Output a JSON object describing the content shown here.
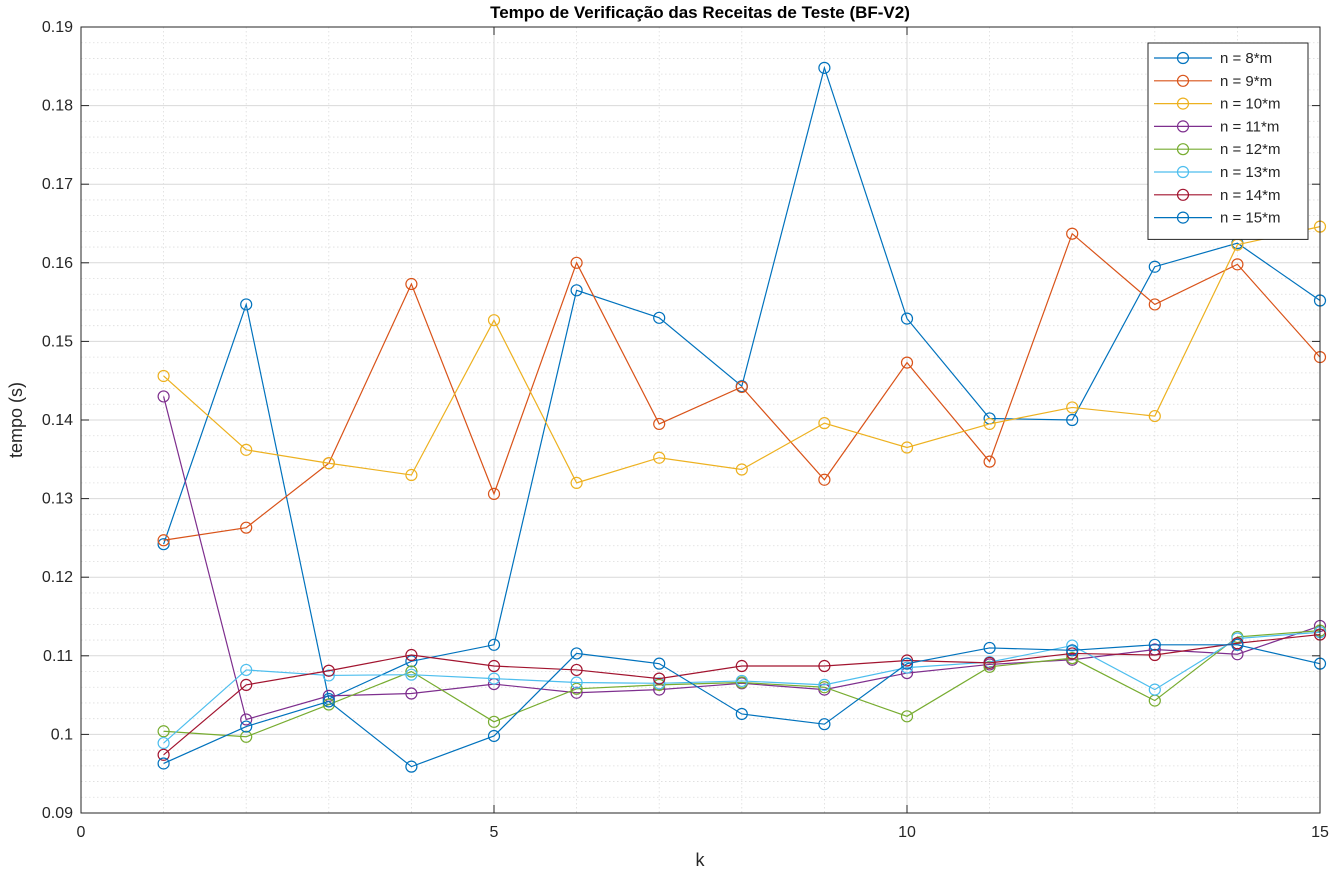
{
  "chart_data": {
    "type": "line",
    "title": "Tempo de Verificação das Receitas de Teste (BF-V2)",
    "xlabel": "k",
    "ylabel": "tempo (s)",
    "xlim": [
      0,
      15
    ],
    "ylim": [
      0.09,
      0.19
    ],
    "xticks": [
      0,
      5,
      10,
      15
    ],
    "xtick_labels": [
      "0",
      "5",
      "10",
      "15"
    ],
    "yticks": [
      0.09,
      0.1,
      0.11,
      0.12,
      0.13,
      0.14,
      0.15,
      0.16,
      0.17,
      0.18,
      0.19
    ],
    "ytick_labels": [
      "0.09",
      "0.1",
      "0.11",
      "0.12",
      "0.13",
      "0.14",
      "0.15",
      "0.16",
      "0.17",
      "0.18",
      "0.19"
    ],
    "grid": true,
    "minor_grid": true,
    "legend_position": "top-right",
    "marker": "circle",
    "x": [
      1,
      2,
      3,
      4,
      5,
      6,
      7,
      8,
      9,
      10,
      11,
      12,
      13,
      14,
      15
    ],
    "series": [
      {
        "name": "n = 8*m",
        "color": "#0072BD",
        "values": [
          0.1242,
          0.1547,
          0.1045,
          0.1093,
          0.1114,
          0.1565,
          0.153,
          0.1443,
          0.1848,
          0.1529,
          0.1402,
          0.14,
          0.1595,
          0.1625,
          0.1552
        ]
      },
      {
        "name": "n = 9*m",
        "color": "#D95319",
        "values": [
          0.1247,
          0.1263,
          0.1345,
          0.1573,
          0.1306,
          0.16,
          0.1395,
          0.1442,
          0.1324,
          0.1473,
          0.1347,
          0.1637,
          0.1547,
          0.1598,
          0.148
        ]
      },
      {
        "name": "n = 10*m",
        "color": "#EDB120",
        "values": [
          0.1456,
          0.1362,
          0.1345,
          0.133,
          0.1527,
          0.132,
          0.1352,
          0.1337,
          0.1396,
          0.1365,
          0.1395,
          0.1416,
          0.1405,
          0.1623,
          0.1646
        ]
      },
      {
        "name": "n = 11*m",
        "color": "#7E2F8E",
        "values": [
          0.143,
          0.1019,
          0.1049,
          0.1052,
          0.1064,
          0.1053,
          0.1057,
          0.1065,
          0.1057,
          0.1078,
          0.1089,
          0.1095,
          0.1108,
          0.1102,
          0.1138
        ]
      },
      {
        "name": "n = 12*m",
        "color": "#77AC30",
        "values": [
          0.1004,
          0.0997,
          0.1038,
          0.108,
          0.1016,
          0.1058,
          0.1063,
          0.1066,
          0.106,
          0.1023,
          0.1086,
          0.1097,
          0.1043,
          0.1124,
          0.1132
        ]
      },
      {
        "name": "n = 13*m",
        "color": "#4DBEEE",
        "values": [
          0.0989,
          0.1082,
          0.1075,
          0.1076,
          0.1071,
          0.1066,
          0.1065,
          0.1068,
          0.1063,
          0.1085,
          0.1092,
          0.1113,
          0.1057,
          0.1122,
          0.113
        ]
      },
      {
        "name": "n = 14*m",
        "color": "#A2142F",
        "values": [
          0.0974,
          0.1063,
          0.1081,
          0.1101,
          0.1087,
          0.1082,
          0.1071,
          0.1087,
          0.1087,
          0.1094,
          0.1091,
          0.1103,
          0.1101,
          0.1116,
          0.1127
        ]
      },
      {
        "name": "n = 15*m",
        "color": "#0072BD",
        "values": [
          0.0963,
          0.101,
          0.1042,
          0.0959,
          0.0998,
          0.1103,
          0.109,
          0.1026,
          0.1013,
          0.109,
          0.111,
          0.1107,
          0.1114,
          0.1114,
          0.109
        ]
      }
    ]
  }
}
